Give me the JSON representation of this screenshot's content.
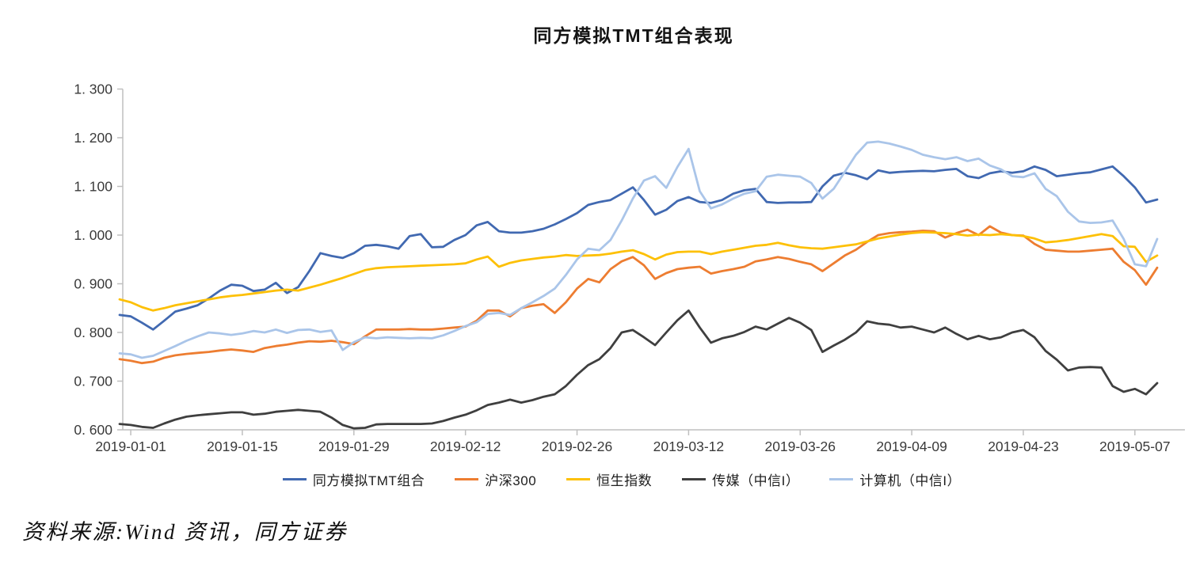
{
  "title": "同方模拟TMT组合表现",
  "source_note": "资料来源:Wind 资讯，同方证券",
  "chart_data": {
    "type": "line",
    "title": "同方模拟TMT组合表现",
    "xlabel": "",
    "ylabel": "",
    "ylim": [
      0.6,
      1.3
    ],
    "grid": false,
    "legend_position": "bottom",
    "y_ticks": [
      0.6,
      0.7,
      0.8,
      0.9,
      1.0,
      1.1,
      1.2,
      1.3
    ],
    "y_tick_labels": [
      "0. 600",
      "0. 700",
      "0. 800",
      "0. 900",
      "1. 000",
      "1. 100",
      "1. 200",
      "1. 300"
    ],
    "x_tick_labels": [
      "2019-01-01",
      "2019-01-15",
      "2019-01-29",
      "2019-02-12",
      "2019-02-26",
      "2019-03-12",
      "2019-03-26",
      "2019-04-09",
      "2019-04-23",
      "2019-05-07"
    ],
    "x_tick_indices": [
      1,
      11,
      21,
      31,
      41,
      51,
      61,
      71,
      81,
      91
    ],
    "axis_color": "#bfbfbf",
    "tick_label_color": "#3a3a3a",
    "series": [
      {
        "name": "同方模拟TMT组合",
        "color": "#4169b1",
        "values": [
          0.836,
          0.833,
          0.82,
          0.806,
          0.824,
          0.843,
          0.849,
          0.856,
          0.87,
          0.886,
          0.898,
          0.896,
          0.885,
          0.888,
          0.902,
          0.881,
          0.893,
          0.926,
          0.963,
          0.957,
          0.953,
          0.963,
          0.978,
          0.98,
          0.977,
          0.972,
          0.998,
          1.002,
          0.975,
          0.976,
          0.99,
          1.0,
          1.02,
          1.027,
          1.008,
          1.005,
          1.005,
          1.008,
          1.013,
          1.022,
          1.033,
          1.045,
          1.062,
          1.068,
          1.072,
          1.085,
          1.098,
          1.072,
          1.042,
          1.052,
          1.07,
          1.078,
          1.068,
          1.066,
          1.072,
          1.085,
          1.092,
          1.095,
          1.068,
          1.066,
          1.067,
          1.067,
          1.068,
          1.1,
          1.122,
          1.128,
          1.123,
          1.115,
          1.133,
          1.128,
          1.13,
          1.131,
          1.132,
          1.131,
          1.134,
          1.136,
          1.121,
          1.117,
          1.127,
          1.131,
          1.128,
          1.131,
          1.141,
          1.134,
          1.121,
          1.124,
          1.127,
          1.129,
          1.135,
          1.141,
          1.121,
          1.098,
          1.067,
          1.073
        ]
      },
      {
        "name": "沪深300",
        "color": "#ed7d31",
        "values": [
          0.745,
          0.742,
          0.737,
          0.74,
          0.748,
          0.753,
          0.756,
          0.758,
          0.76,
          0.763,
          0.765,
          0.763,
          0.76,
          0.768,
          0.772,
          0.775,
          0.779,
          0.782,
          0.781,
          0.783,
          0.78,
          0.776,
          0.792,
          0.806,
          0.806,
          0.806,
          0.807,
          0.806,
          0.806,
          0.808,
          0.81,
          0.812,
          0.824,
          0.845,
          0.845,
          0.833,
          0.85,
          0.855,
          0.858,
          0.84,
          0.862,
          0.89,
          0.91,
          0.903,
          0.93,
          0.946,
          0.955,
          0.938,
          0.91,
          0.922,
          0.93,
          0.933,
          0.935,
          0.921,
          0.926,
          0.93,
          0.935,
          0.946,
          0.95,
          0.955,
          0.951,
          0.945,
          0.94,
          0.926,
          0.942,
          0.958,
          0.97,
          0.986,
          1.0,
          1.004,
          1.006,
          1.007,
          1.009,
          1.008,
          0.995,
          1.004,
          1.011,
          1.0,
          1.018,
          1.005,
          1.0,
          0.999,
          0.982,
          0.97,
          0.968,
          0.966,
          0.966,
          0.968,
          0.97,
          0.972,
          0.945,
          0.928,
          0.898,
          0.933
        ]
      },
      {
        "name": "恒生指数",
        "color": "#fdc006",
        "values": [
          0.868,
          0.862,
          0.852,
          0.845,
          0.85,
          0.856,
          0.86,
          0.864,
          0.868,
          0.872,
          0.875,
          0.877,
          0.88,
          0.883,
          0.886,
          0.888,
          0.886,
          0.892,
          0.898,
          0.905,
          0.912,
          0.92,
          0.928,
          0.932,
          0.934,
          0.935,
          0.936,
          0.937,
          0.938,
          0.939,
          0.94,
          0.942,
          0.95,
          0.956,
          0.935,
          0.943,
          0.948,
          0.951,
          0.954,
          0.956,
          0.959,
          0.957,
          0.958,
          0.959,
          0.962,
          0.966,
          0.969,
          0.961,
          0.95,
          0.96,
          0.965,
          0.966,
          0.966,
          0.961,
          0.966,
          0.97,
          0.974,
          0.978,
          0.98,
          0.984,
          0.979,
          0.975,
          0.973,
          0.972,
          0.975,
          0.978,
          0.981,
          0.987,
          0.993,
          0.997,
          1.001,
          1.004,
          1.006,
          1.005,
          1.004,
          1.002,
          0.999,
          1.001,
          1.0,
          1.002,
          1.0,
          0.998,
          0.993,
          0.985,
          0.987,
          0.99,
          0.994,
          0.998,
          1.002,
          0.998,
          0.977,
          0.976,
          0.945,
          0.958
        ]
      },
      {
        "name": "传媒（中信I）",
        "color": "#3f3f3f",
        "values": [
          0.612,
          0.61,
          0.606,
          0.604,
          0.613,
          0.621,
          0.627,
          0.63,
          0.632,
          0.634,
          0.636,
          0.636,
          0.631,
          0.633,
          0.637,
          0.639,
          0.641,
          0.639,
          0.637,
          0.625,
          0.61,
          0.603,
          0.604,
          0.611,
          0.612,
          0.612,
          0.612,
          0.612,
          0.613,
          0.618,
          0.625,
          0.631,
          0.64,
          0.651,
          0.656,
          0.662,
          0.656,
          0.661,
          0.668,
          0.673,
          0.69,
          0.713,
          0.733,
          0.745,
          0.768,
          0.8,
          0.805,
          0.79,
          0.774,
          0.8,
          0.825,
          0.845,
          0.81,
          0.779,
          0.788,
          0.793,
          0.801,
          0.812,
          0.806,
          0.818,
          0.83,
          0.82,
          0.805,
          0.76,
          0.773,
          0.785,
          0.8,
          0.823,
          0.818,
          0.816,
          0.81,
          0.812,
          0.806,
          0.8,
          0.81,
          0.797,
          0.786,
          0.793,
          0.786,
          0.79,
          0.8,
          0.805,
          0.79,
          0.762,
          0.744,
          0.722,
          0.728,
          0.729,
          0.728,
          0.69,
          0.678,
          0.684,
          0.673,
          0.696
        ]
      },
      {
        "name": "计算机（中信I）",
        "color": "#aac5e9",
        "values": [
          0.757,
          0.755,
          0.748,
          0.752,
          0.762,
          0.772,
          0.783,
          0.792,
          0.8,
          0.798,
          0.795,
          0.798,
          0.803,
          0.8,
          0.806,
          0.799,
          0.805,
          0.806,
          0.801,
          0.804,
          0.764,
          0.78,
          0.79,
          0.788,
          0.79,
          0.789,
          0.788,
          0.789,
          0.788,
          0.794,
          0.803,
          0.813,
          0.821,
          0.838,
          0.84,
          0.836,
          0.85,
          0.862,
          0.875,
          0.89,
          0.918,
          0.95,
          0.972,
          0.969,
          0.99,
          1.03,
          1.075,
          1.112,
          1.121,
          1.097,
          1.14,
          1.177,
          1.09,
          1.055,
          1.063,
          1.075,
          1.085,
          1.09,
          1.12,
          1.124,
          1.122,
          1.12,
          1.107,
          1.075,
          1.095,
          1.13,
          1.165,
          1.19,
          1.192,
          1.188,
          1.182,
          1.175,
          1.165,
          1.16,
          1.156,
          1.16,
          1.152,
          1.157,
          1.143,
          1.135,
          1.121,
          1.119,
          1.127,
          1.095,
          1.08,
          1.048,
          1.028,
          1.025,
          1.026,
          1.03,
          0.992,
          0.94,
          0.936,
          0.992
        ]
      }
    ]
  }
}
